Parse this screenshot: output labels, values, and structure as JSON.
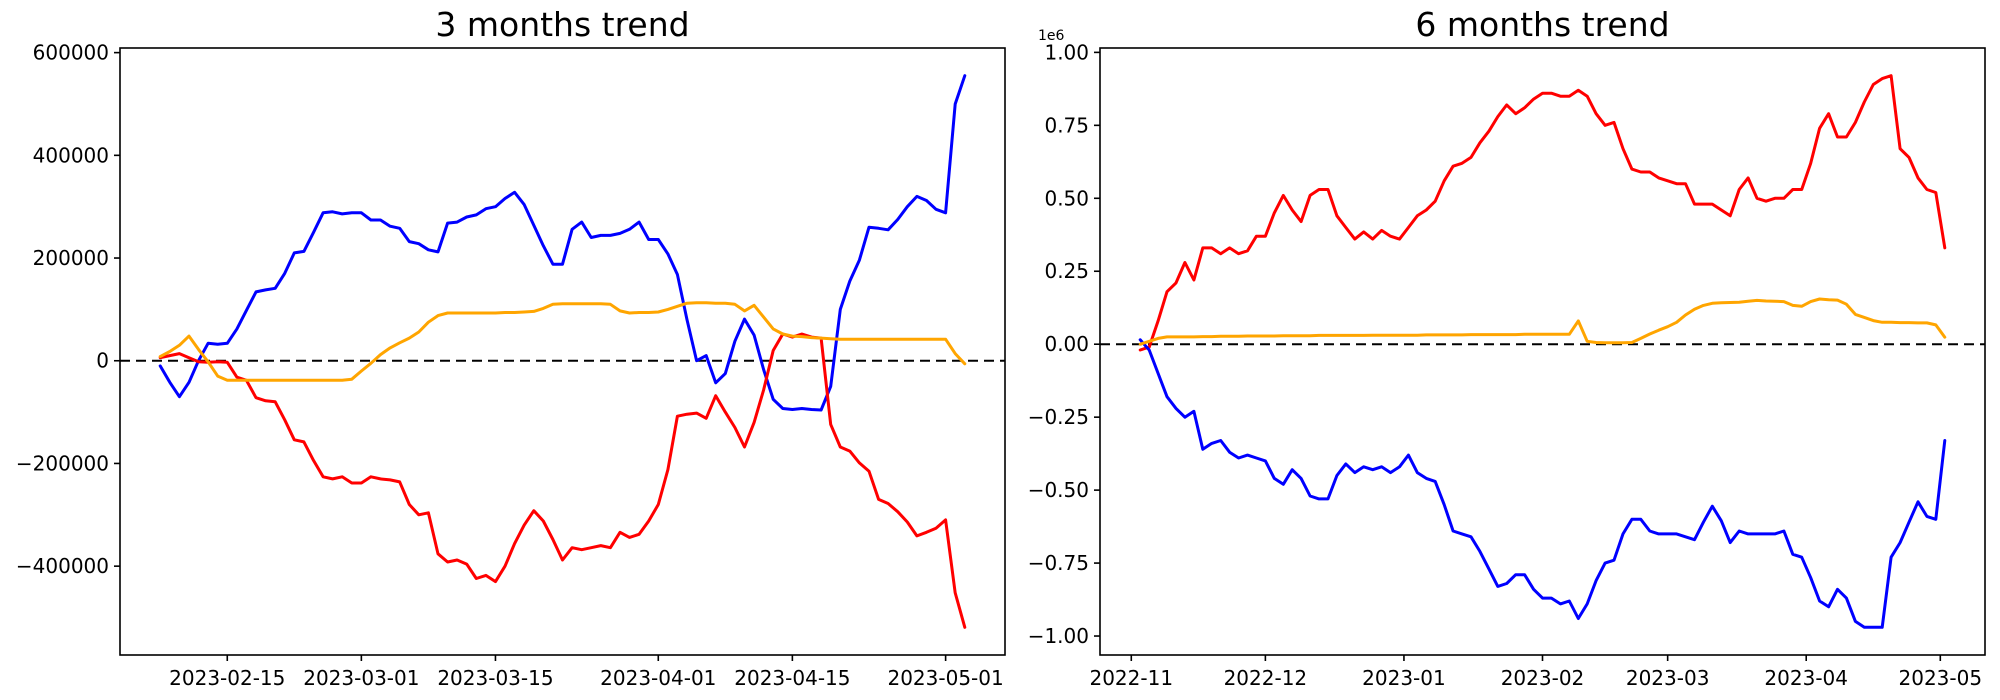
{
  "figure": {
    "background": "#ffffff",
    "text_color": "#000000",
    "zero_line_color": "#000000"
  },
  "chart_data": [
    {
      "type": "line",
      "name": "three-months-trend",
      "title": "3 months trend",
      "xlabel": "",
      "ylabel": "",
      "grid": false,
      "legend": null,
      "zero_line": true,
      "ylim": [
        -573000,
        609000
      ],
      "yticks": [
        600000,
        400000,
        200000,
        0,
        -200000,
        -400000
      ],
      "yticklabels": [
        "600000",
        "400000",
        "200000",
        "0",
        "−200000",
        "−400000"
      ],
      "xticks": [
        "2023-02-15",
        "2023-03-01",
        "2023-03-15",
        "2023-04-01",
        "2023-04-15",
        "2023-05-01"
      ],
      "xticklabels": [
        "2023-02-15",
        "2023-03-01",
        "2023-03-15",
        "2023-04-01",
        "2023-04-15",
        "2023-05-01"
      ],
      "x": [
        "2023-02-08",
        "2023-02-09",
        "2023-02-10",
        "2023-02-11",
        "2023-02-12",
        "2023-02-13",
        "2023-02-14",
        "2023-02-15",
        "2023-02-16",
        "2023-02-17",
        "2023-02-18",
        "2023-02-19",
        "2023-02-20",
        "2023-02-21",
        "2023-02-22",
        "2023-02-23",
        "2023-02-24",
        "2023-02-25",
        "2023-02-26",
        "2023-02-27",
        "2023-02-28",
        "2023-03-01",
        "2023-03-02",
        "2023-03-03",
        "2023-03-04",
        "2023-03-05",
        "2023-03-06",
        "2023-03-07",
        "2023-03-08",
        "2023-03-09",
        "2023-03-10",
        "2023-03-11",
        "2023-03-12",
        "2023-03-13",
        "2023-03-14",
        "2023-03-15",
        "2023-03-16",
        "2023-03-17",
        "2023-03-18",
        "2023-03-19",
        "2023-03-20",
        "2023-03-21",
        "2023-03-22",
        "2023-03-23",
        "2023-03-24",
        "2023-03-25",
        "2023-03-26",
        "2023-03-27",
        "2023-03-28",
        "2023-03-29",
        "2023-03-30",
        "2023-03-31",
        "2023-04-01",
        "2023-04-02",
        "2023-04-03",
        "2023-04-04",
        "2023-04-05",
        "2023-04-06",
        "2023-04-07",
        "2023-04-08",
        "2023-04-09",
        "2023-04-10",
        "2023-04-11",
        "2023-04-12",
        "2023-04-13",
        "2023-04-14",
        "2023-04-15",
        "2023-04-16",
        "2023-04-17",
        "2023-04-18",
        "2023-04-19",
        "2023-04-20",
        "2023-04-21",
        "2023-04-22",
        "2023-04-23",
        "2023-04-24",
        "2023-04-25",
        "2023-04-26",
        "2023-04-27",
        "2023-04-28",
        "2023-04-29",
        "2023-04-30",
        "2023-05-01",
        "2023-05-02",
        "2023-05-03"
      ],
      "series": [
        {
          "name": "blue",
          "color": "#0000ff",
          "values": [
            -10000,
            -42000,
            -70000,
            -42000,
            0,
            34000,
            32000,
            34000,
            62000,
            98000,
            134000,
            138000,
            141000,
            170000,
            210000,
            213000,
            250000,
            288000,
            290000,
            286000,
            288000,
            288000,
            274000,
            274000,
            262000,
            258000,
            232000,
            228000,
            216000,
            212000,
            268000,
            270000,
            280000,
            284000,
            296000,
            300000,
            316000,
            328000,
            304000,
            264000,
            224000,
            188000,
            188000,
            256000,
            270000,
            240000,
            244000,
            244000,
            248000,
            256000,
            270000,
            236000,
            236000,
            208000,
            168000,
            80000,
            0,
            10000,
            -43000,
            -25000,
            38000,
            81000,
            50000,
            -17000,
            -75000,
            -93000,
            -95000,
            -93000,
            -95000,
            -96000,
            -50000,
            100000,
            155000,
            196000,
            260000,
            258000,
            255000,
            275000,
            300000,
            320000,
            312000,
            295000,
            288000,
            500000,
            555000
          ]
        },
        {
          "name": "red",
          "color": "#ff0000",
          "values": [
            6000,
            10000,
            14000,
            6000,
            -2000,
            -3000,
            -2000,
            -3000,
            -32000,
            -38000,
            -72000,
            -78000,
            -80000,
            -115000,
            -154000,
            -158000,
            -194000,
            -226000,
            -230000,
            -226000,
            -238000,
            -238000,
            -226000,
            -230000,
            -232000,
            -236000,
            -280000,
            -300000,
            -296000,
            -376000,
            -392000,
            -388000,
            -396000,
            -424000,
            -418000,
            -430000,
            -400000,
            -356000,
            -320000,
            -292000,
            -312000,
            -348000,
            -388000,
            -364000,
            -368000,
            -364000,
            -360000,
            -364000,
            -334000,
            -344000,
            -338000,
            -312000,
            -280000,
            -212000,
            -108000,
            -104000,
            -102000,
            -112000,
            -68000,
            -100000,
            -130000,
            -168000,
            -120000,
            -57000,
            20000,
            52000,
            46000,
            52000,
            46000,
            44000,
            -124000,
            -168000,
            -176000,
            -199000,
            -215000,
            -270000,
            -278000,
            -294000,
            -314000,
            -341000,
            -334000,
            -326000,
            -310000,
            -452000,
            -519000
          ]
        },
        {
          "name": "orange",
          "color": "#ffa500",
          "values": [
            8000,
            18000,
            30000,
            48000,
            22000,
            -2000,
            -30000,
            -38000,
            -38000,
            -38000,
            -38000,
            -38000,
            -38000,
            -38000,
            -38000,
            -38000,
            -38000,
            -38000,
            -38000,
            -38000,
            -36000,
            -20000,
            -5000,
            12000,
            25000,
            35000,
            44000,
            56000,
            75000,
            88000,
            93000,
            93000,
            93000,
            93000,
            93000,
            93000,
            94000,
            94000,
            95000,
            96000,
            102000,
            110000,
            111000,
            111000,
            111000,
            111000,
            111000,
            110000,
            97000,
            93000,
            94000,
            94000,
            95000,
            100000,
            106000,
            112000,
            113000,
            113000,
            112000,
            112000,
            110000,
            97000,
            108000,
            85000,
            62000,
            52000,
            48000,
            47000,
            45000,
            44000,
            43000,
            42000,
            42000,
            42000,
            42000,
            42000,
            42000,
            42000,
            42000,
            42000,
            42000,
            42000,
            42000,
            14000,
            -6000
          ]
        }
      ]
    },
    {
      "type": "line",
      "name": "six-months-trend",
      "title": "6 months trend",
      "xlabel": "",
      "ylabel": "",
      "grid": false,
      "legend": null,
      "zero_line": true,
      "offset_label": "1e6",
      "ylim": [
        -1065000,
        1015000
      ],
      "yticks": [
        1000000,
        750000,
        500000,
        250000,
        0,
        -250000,
        -500000,
        -750000,
        -1000000
      ],
      "yticklabels": [
        "1.00",
        "0.75",
        "0.50",
        "0.25",
        "0.00",
        "−0.25",
        "−0.50",
        "−0.75",
        "−1.00"
      ],
      "xticks": [
        "2022-11-01",
        "2022-12-01",
        "2023-01-01",
        "2023-02-01",
        "2023-03-01",
        "2023-04-01",
        "2023-05-01"
      ],
      "xticklabels": [
        "2022-11",
        "2022-12",
        "2023-01",
        "2023-02",
        "2023-03",
        "2023-04",
        "2023-05"
      ],
      "x": [
        "2022-11-03",
        "2022-11-05",
        "2022-11-07",
        "2022-11-09",
        "2022-11-11",
        "2022-11-13",
        "2022-11-15",
        "2022-11-17",
        "2022-11-19",
        "2022-11-21",
        "2022-11-23",
        "2022-11-25",
        "2022-11-27",
        "2022-11-29",
        "2022-12-01",
        "2022-12-03",
        "2022-12-05",
        "2022-12-07",
        "2022-12-09",
        "2022-12-11",
        "2022-12-13",
        "2022-12-15",
        "2022-12-17",
        "2022-12-19",
        "2022-12-21",
        "2022-12-23",
        "2022-12-25",
        "2022-12-27",
        "2022-12-29",
        "2022-12-31",
        "2023-01-02",
        "2023-01-04",
        "2023-01-06",
        "2023-01-08",
        "2023-01-10",
        "2023-01-12",
        "2023-01-14",
        "2023-01-16",
        "2023-01-18",
        "2023-01-20",
        "2023-01-22",
        "2023-01-24",
        "2023-01-26",
        "2023-01-28",
        "2023-01-30",
        "2023-02-01",
        "2023-02-03",
        "2023-02-05",
        "2023-02-07",
        "2023-02-09",
        "2023-02-11",
        "2023-02-13",
        "2023-02-15",
        "2023-02-17",
        "2023-02-19",
        "2023-02-21",
        "2023-02-23",
        "2023-02-25",
        "2023-02-27",
        "2023-03-01",
        "2023-03-03",
        "2023-03-05",
        "2023-03-07",
        "2023-03-09",
        "2023-03-11",
        "2023-03-13",
        "2023-03-15",
        "2023-03-17",
        "2023-03-19",
        "2023-03-21",
        "2023-03-23",
        "2023-03-25",
        "2023-03-27",
        "2023-03-29",
        "2023-03-31",
        "2023-04-02",
        "2023-04-04",
        "2023-04-06",
        "2023-04-08",
        "2023-04-10",
        "2023-04-12",
        "2023-04-14",
        "2023-04-16",
        "2023-04-18",
        "2023-04-20",
        "2023-04-22",
        "2023-04-24",
        "2023-04-26",
        "2023-04-28",
        "2023-04-30",
        "2023-05-02"
      ],
      "series": [
        {
          "name": "red",
          "color": "#ff0000",
          "values": [
            -20000,
            -10000,
            80000,
            180000,
            210000,
            280000,
            220000,
            330000,
            330000,
            310000,
            330000,
            310000,
            320000,
            370000,
            370000,
            450000,
            510000,
            460000,
            420000,
            510000,
            530000,
            530000,
            440000,
            400000,
            360000,
            385000,
            360000,
            390000,
            370000,
            360000,
            400000,
            440000,
            460000,
            490000,
            560000,
            610000,
            620000,
            640000,
            690000,
            730000,
            780000,
            820000,
            790000,
            810000,
            840000,
            860000,
            860000,
            850000,
            850000,
            870000,
            850000,
            790000,
            750000,
            760000,
            670000,
            600000,
            590000,
            590000,
            570000,
            560000,
            550000,
            550000,
            480000,
            480000,
            480000,
            460000,
            440000,
            530000,
            570000,
            500000,
            490000,
            500000,
            500000,
            530000,
            530000,
            620000,
            740000,
            790000,
            710000,
            710000,
            760000,
            830000,
            890000,
            910000,
            920000,
            670000,
            640000,
            570000,
            530000,
            520000,
            330000
          ]
        },
        {
          "name": "blue",
          "color": "#0000ff",
          "values": [
            15000,
            -20000,
            -100000,
            -180000,
            -220000,
            -250000,
            -230000,
            -360000,
            -340000,
            -330000,
            -370000,
            -390000,
            -380000,
            -390000,
            -400000,
            -460000,
            -480000,
            -430000,
            -460000,
            -520000,
            -530000,
            -530000,
            -450000,
            -410000,
            -440000,
            -420000,
            -430000,
            -420000,
            -440000,
            -420000,
            -380000,
            -440000,
            -460000,
            -470000,
            -550000,
            -640000,
            -650000,
            -660000,
            -710000,
            -770000,
            -830000,
            -820000,
            -790000,
            -790000,
            -840000,
            -870000,
            -870000,
            -890000,
            -880000,
            -940000,
            -890000,
            -810000,
            -750000,
            -740000,
            -650000,
            -600000,
            -600000,
            -640000,
            -650000,
            -650000,
            -650000,
            -660000,
            -670000,
            -610000,
            -555000,
            -605000,
            -680000,
            -640000,
            -650000,
            -650000,
            -650000,
            -650000,
            -640000,
            -720000,
            -730000,
            -800000,
            -880000,
            -900000,
            -840000,
            -870000,
            -950000,
            -970000,
            -970000,
            -970000,
            -730000,
            -680000,
            -610000,
            -540000,
            -590000,
            -600000,
            -330000
          ]
        },
        {
          "name": "orange",
          "color": "#ffa500",
          "values": [
            0,
            10000,
            20000,
            25000,
            25000,
            25000,
            25000,
            26000,
            26000,
            27000,
            27000,
            27000,
            28000,
            28000,
            28000,
            28000,
            29000,
            29000,
            29000,
            29000,
            30000,
            30000,
            30000,
            30000,
            30000,
            30000,
            31000,
            31000,
            31000,
            31000,
            31000,
            31000,
            32000,
            32000,
            32000,
            32000,
            32000,
            33000,
            33000,
            33000,
            33000,
            33000,
            33000,
            34000,
            34000,
            34000,
            34000,
            34000,
            34000,
            80000,
            10000,
            6000,
            5000,
            5000,
            5000,
            6000,
            20000,
            35000,
            48000,
            60000,
            75000,
            100000,
            120000,
            133000,
            140000,
            142000,
            143000,
            144000,
            147000,
            150000,
            148000,
            147000,
            146000,
            133000,
            130000,
            146000,
            155000,
            152000,
            151000,
            137000,
            102000,
            92000,
            81000,
            75000,
            75000,
            74000,
            74000,
            73000,
            73000,
            66000,
            24000
          ]
        }
      ]
    }
  ]
}
